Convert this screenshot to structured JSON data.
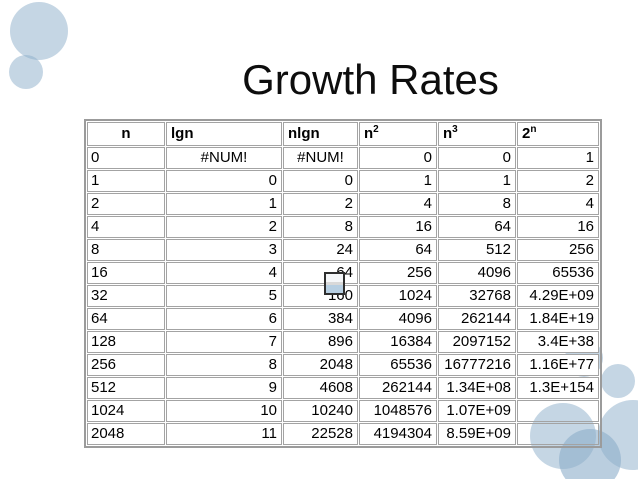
{
  "slide": {
    "title": "Growth Rates"
  },
  "table": {
    "error_value": "#NUM!",
    "columns": [
      {
        "key": "n",
        "base": "n",
        "sup": ""
      },
      {
        "key": "lgn",
        "base": "lgn",
        "sup": ""
      },
      {
        "key": "nlgn",
        "base": "nlgn",
        "sup": ""
      },
      {
        "key": "n2",
        "base": "n",
        "sup": "2"
      },
      {
        "key": "n3",
        "base": "n",
        "sup": "3"
      },
      {
        "key": "2n",
        "base": "2",
        "sup": "n"
      }
    ],
    "rows": [
      [
        "0",
        "#NUM!",
        "#NUM!",
        "0",
        "0",
        "1"
      ],
      [
        "1",
        "0",
        "0",
        "1",
        "1",
        "2"
      ],
      [
        "2",
        "1",
        "2",
        "4",
        "8",
        "4"
      ],
      [
        "4",
        "2",
        "8",
        "16",
        "64",
        "16"
      ],
      [
        "8",
        "3",
        "24",
        "64",
        "512",
        "256"
      ],
      [
        "16",
        "4",
        "64",
        "256",
        "4096",
        "65536"
      ],
      [
        "32",
        "5",
        "160",
        "1024",
        "32768",
        "4.29E+09"
      ],
      [
        "64",
        "6",
        "384",
        "4096",
        "262144",
        "1.84E+19"
      ],
      [
        "128",
        "7",
        "896",
        "16384",
        "2097152",
        "3.4E+38"
      ],
      [
        "256",
        "8",
        "2048",
        "65536",
        "16777216",
        "1.16E+77"
      ],
      [
        "512",
        "9",
        "4608",
        "262144",
        "1.34E+08",
        "1.3E+154"
      ],
      [
        "1024",
        "10",
        "10240",
        "1048576",
        "1.07E+09",
        ""
      ],
      [
        "2048",
        "11",
        "22528",
        "4194304",
        "8.59E+09",
        ""
      ]
    ]
  },
  "icons": {
    "embedded_object_icon": "embedded-object-placeholder"
  },
  "colors": {
    "background": "#ffffff",
    "text": "#000000",
    "table_border": "#9b9b9b",
    "cell_border": "#a3a3a3",
    "circle_accent": "#8cadc9",
    "icon_fill": "#b7cfe2"
  }
}
